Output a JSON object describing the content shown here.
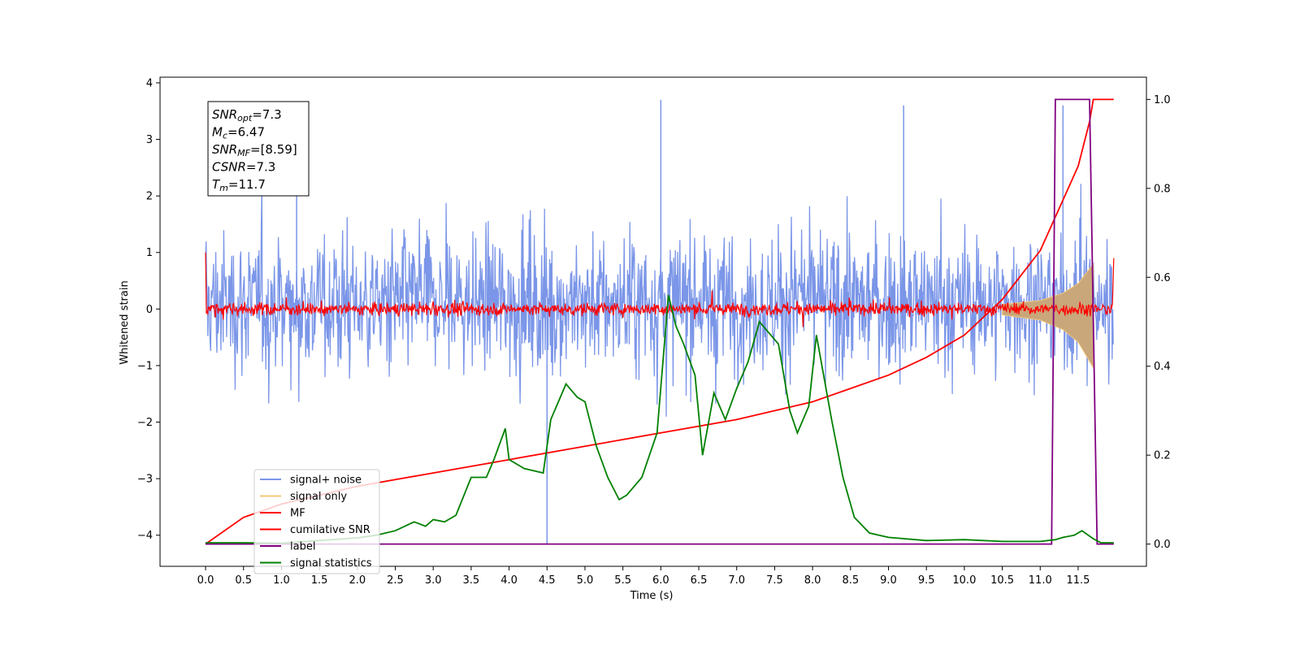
{
  "chart_data": {
    "type": "line",
    "xlabel": "Time (s)",
    "ylabel": "Whitened strain",
    "xlim": [
      -0.6,
      12.4
    ],
    "ylim": [
      -4.55,
      4.1
    ],
    "y2lim": [
      -0.05,
      1.05
    ],
    "x_ticks": [
      "0.0",
      "0.5",
      "1.0",
      "1.5",
      "2.0",
      "2.5",
      "3.0",
      "3.5",
      "4.0",
      "4.5",
      "5.0",
      "5.5",
      "6.0",
      "6.5",
      "7.0",
      "7.5",
      "8.0",
      "8.5",
      "9.0",
      "9.5",
      "10.0",
      "10.5",
      "11.0",
      "11.5"
    ],
    "y_ticks": [
      "4",
      "3",
      "2",
      "1",
      "0",
      "−1",
      "−2",
      "−3",
      "−4"
    ],
    "y2_ticks": [
      "1.0",
      "0.8",
      "0.6",
      "0.4",
      "0.2",
      "0.0"
    ],
    "grid": false,
    "legend_position": "lower-left",
    "annotation": {
      "lines": [
        {
          "sym": "SNR",
          "sub": "opt",
          "val": "=7.3"
        },
        {
          "sym": "M",
          "sub": "c",
          "val": "=6.47"
        },
        {
          "sym": "SNR",
          "sub": "MF",
          "val": "=[8.59]"
        },
        {
          "sym": "CSNR",
          "sub": "",
          "val": "=7.3"
        },
        {
          "sym": "T",
          "sub": "m",
          "val": "=11.7"
        }
      ]
    },
    "series": [
      {
        "name": "signal+ noise",
        "color": "#7b96e8",
        "axis": "left",
        "style": "noise band, approx. -2.4 to 2.6 with spikes to 3.7 and -4.1",
        "spike_peaks": [
          [
            6.0,
            3.7
          ],
          [
            1.2,
            3.5
          ],
          [
            9.2,
            3.6
          ],
          [
            11.3,
            3.6
          ],
          [
            4.5,
            -4.15
          ]
        ]
      },
      {
        "name": "signal only",
        "color": "#f5c77a",
        "axis": "left",
        "style": "chirp envelope growing from 10.5 s to 11.7 s",
        "envelope": [
          [
            10.5,
            0.08
          ],
          [
            11.0,
            0.15
          ],
          [
            11.3,
            0.28
          ],
          [
            11.5,
            0.45
          ],
          [
            11.7,
            0.8
          ]
        ]
      },
      {
        "name": "MF",
        "color": "#ff0000",
        "axis": "left",
        "style": "matched-filter noise around 0, amplitude about ±0.25",
        "edge_values": [
          [
            0.0,
            1.0
          ],
          [
            11.97,
            0.9
          ]
        ]
      },
      {
        "name": "cumilative SNR",
        "color": "#ff0000",
        "axis": "right",
        "x": [
          0.0,
          0.5,
          1.0,
          2.0,
          3.0,
          4.0,
          5.0,
          6.0,
          7.0,
          8.0,
          8.5,
          9.0,
          9.5,
          10.0,
          10.5,
          11.0,
          11.5,
          11.65,
          11.7,
          11.97
        ],
        "y": [
          0.0,
          0.06,
          0.09,
          0.13,
          0.16,
          0.19,
          0.22,
          0.25,
          0.28,
          0.32,
          0.35,
          0.38,
          0.42,
          0.47,
          0.55,
          0.66,
          0.85,
          0.95,
          1.0,
          1.0
        ]
      },
      {
        "name": "label",
        "color": "#800080",
        "axis": "right",
        "x": [
          0.0,
          11.15,
          11.2,
          11.65,
          11.75,
          11.97
        ],
        "y": [
          0.0,
          0.0,
          1.0,
          1.0,
          0.0,
          0.0
        ]
      },
      {
        "name": "signal statistics",
        "color": "#008000",
        "axis": "right",
        "x": [
          0.0,
          0.5,
          1.0,
          1.5,
          2.0,
          2.25,
          2.5,
          2.75,
          2.9,
          3.0,
          3.15,
          3.3,
          3.5,
          3.7,
          3.8,
          3.95,
          4.0,
          4.2,
          4.45,
          4.55,
          4.75,
          4.9,
          5.0,
          5.15,
          5.3,
          5.45,
          5.55,
          5.75,
          5.95,
          6.1,
          6.2,
          6.3,
          6.45,
          6.55,
          6.7,
          6.85,
          7.0,
          7.15,
          7.3,
          7.45,
          7.55,
          7.7,
          7.8,
          7.95,
          8.05,
          8.25,
          8.4,
          8.55,
          8.75,
          9.0,
          9.5,
          10.0,
          10.5,
          11.0,
          11.2,
          11.3,
          11.45,
          11.55,
          11.7,
          11.8,
          11.97
        ],
        "y": [
          0.003,
          0.003,
          0.002,
          0.008,
          0.014,
          0.02,
          0.03,
          0.05,
          0.04,
          0.055,
          0.05,
          0.065,
          0.15,
          0.15,
          0.19,
          0.26,
          0.19,
          0.17,
          0.16,
          0.28,
          0.36,
          0.33,
          0.32,
          0.22,
          0.15,
          0.1,
          0.11,
          0.15,
          0.25,
          0.56,
          0.49,
          0.45,
          0.38,
          0.2,
          0.34,
          0.28,
          0.35,
          0.41,
          0.5,
          0.47,
          0.45,
          0.3,
          0.25,
          0.31,
          0.47,
          0.28,
          0.15,
          0.06,
          0.025,
          0.015,
          0.008,
          0.01,
          0.006,
          0.006,
          0.01,
          0.015,
          0.02,
          0.03,
          0.012,
          0.003,
          0.003
        ]
      }
    ]
  }
}
